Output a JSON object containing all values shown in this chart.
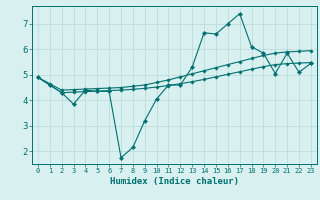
{
  "xlabel": "Humidex (Indice chaleur)",
  "x": [
    0,
    1,
    2,
    3,
    4,
    5,
    6,
    7,
    8,
    9,
    10,
    11,
    12,
    13,
    14,
    15,
    16,
    17,
    18,
    19,
    20,
    21,
    22,
    23
  ],
  "line_upper": [
    4.9,
    4.65,
    4.4,
    4.42,
    4.44,
    4.46,
    4.48,
    4.5,
    4.55,
    4.6,
    4.7,
    4.8,
    4.92,
    5.04,
    5.16,
    5.28,
    5.4,
    5.52,
    5.64,
    5.76,
    5.85,
    5.9,
    5.92,
    5.95
  ],
  "line_lower": [
    4.9,
    4.6,
    4.3,
    4.32,
    4.34,
    4.36,
    4.38,
    4.4,
    4.43,
    4.47,
    4.52,
    4.58,
    4.65,
    4.73,
    4.82,
    4.92,
    5.02,
    5.12,
    5.22,
    5.32,
    5.4,
    5.44,
    5.46,
    5.48
  ],
  "line_data": [
    4.9,
    4.6,
    4.3,
    3.85,
    4.4,
    4.35,
    4.35,
    1.75,
    2.15,
    3.2,
    4.05,
    4.6,
    4.6,
    5.3,
    6.65,
    6.6,
    7.0,
    7.4,
    6.1,
    5.85,
    5.05,
    5.85,
    5.1,
    5.45
  ],
  "line_color": "#007070",
  "bg_color": "#d8f0f0",
  "grid_color": "#b8d8d8",
  "ylim": [
    1.5,
    7.7
  ],
  "yticks": [
    2,
    3,
    4,
    5,
    6,
    7
  ],
  "xlim": [
    -0.5,
    23.5
  ],
  "xticks": [
    0,
    1,
    2,
    3,
    4,
    5,
    6,
    7,
    8,
    9,
    10,
    11,
    12,
    13,
    14,
    15,
    16,
    17,
    18,
    19,
    20,
    21,
    22,
    23
  ]
}
